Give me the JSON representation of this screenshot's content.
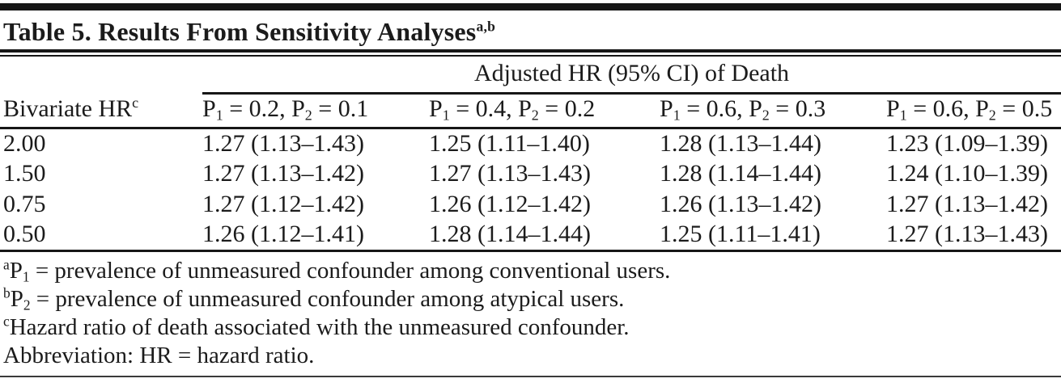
{
  "colors": {
    "background": "#ffffff",
    "text": "#1b1b1b",
    "rule": "#161616"
  },
  "title": {
    "text": "Table 5. Results From Sensitivity Analyses",
    "superscript": "a,b"
  },
  "table": {
    "spanner_header": "Adjusted HR (95% CI) of Death",
    "stub_header": {
      "text": "Bivariate HR",
      "superscript": "c"
    },
    "column_headers": [
      {
        "segments": [
          {
            "t": "P"
          },
          {
            "sub": "1"
          },
          {
            "t": " = 0.2, P"
          },
          {
            "sub": "2"
          },
          {
            "t": " = 0.1"
          }
        ]
      },
      {
        "segments": [
          {
            "t": "P"
          },
          {
            "sub": "1"
          },
          {
            "t": " = 0.4, P"
          },
          {
            "sub": "2"
          },
          {
            "t": " = 0.2"
          }
        ]
      },
      {
        "segments": [
          {
            "t": "P"
          },
          {
            "sub": "1"
          },
          {
            "t": " = 0.6, P"
          },
          {
            "sub": "2"
          },
          {
            "t": " = 0.3"
          }
        ]
      },
      {
        "segments": [
          {
            "t": "P"
          },
          {
            "sub": "1"
          },
          {
            "t": " = 0.6, P"
          },
          {
            "sub": "2"
          },
          {
            "t": " = 0.5"
          }
        ]
      }
    ],
    "rows": [
      {
        "bivariate_hr": "2.00",
        "cells": [
          "1.27 (1.13–1.43)",
          "1.25 (1.11–1.40)",
          "1.28 (1.13–1.44)",
          "1.23 (1.09–1.39)"
        ]
      },
      {
        "bivariate_hr": "1.50",
        "cells": [
          "1.27 (1.13–1.42)",
          "1.27 (1.13–1.43)",
          "1.28 (1.14–1.44)",
          "1.24 (1.10–1.39)"
        ]
      },
      {
        "bivariate_hr": "0.75",
        "cells": [
          "1.27 (1.12–1.42)",
          "1.26 (1.12–1.42)",
          "1.26 (1.13–1.42)",
          "1.27 (1.13–1.42)"
        ]
      },
      {
        "bivariate_hr": "0.50",
        "cells": [
          "1.26 (1.12–1.41)",
          "1.28 (1.14–1.44)",
          "1.25 (1.11–1.41)",
          "1.27 (1.13–1.43)"
        ]
      }
    ]
  },
  "footnotes": [
    {
      "segments": [
        {
          "sup": "a"
        },
        {
          "t": "P"
        },
        {
          "sub": "1"
        },
        {
          "t": " = prevalence of unmeasured confounder among conventional users."
        }
      ]
    },
    {
      "segments": [
        {
          "sup": "b"
        },
        {
          "t": "P"
        },
        {
          "sub": "2"
        },
        {
          "t": " = prevalence of unmeasured confounder among atypical users."
        }
      ]
    },
    {
      "segments": [
        {
          "sup": "c"
        },
        {
          "t": "Hazard ratio of death associated with the unmeasured confounder."
        }
      ]
    },
    {
      "segments": [
        {
          "t": "Abbreviation: HR = hazard ratio."
        }
      ]
    }
  ]
}
